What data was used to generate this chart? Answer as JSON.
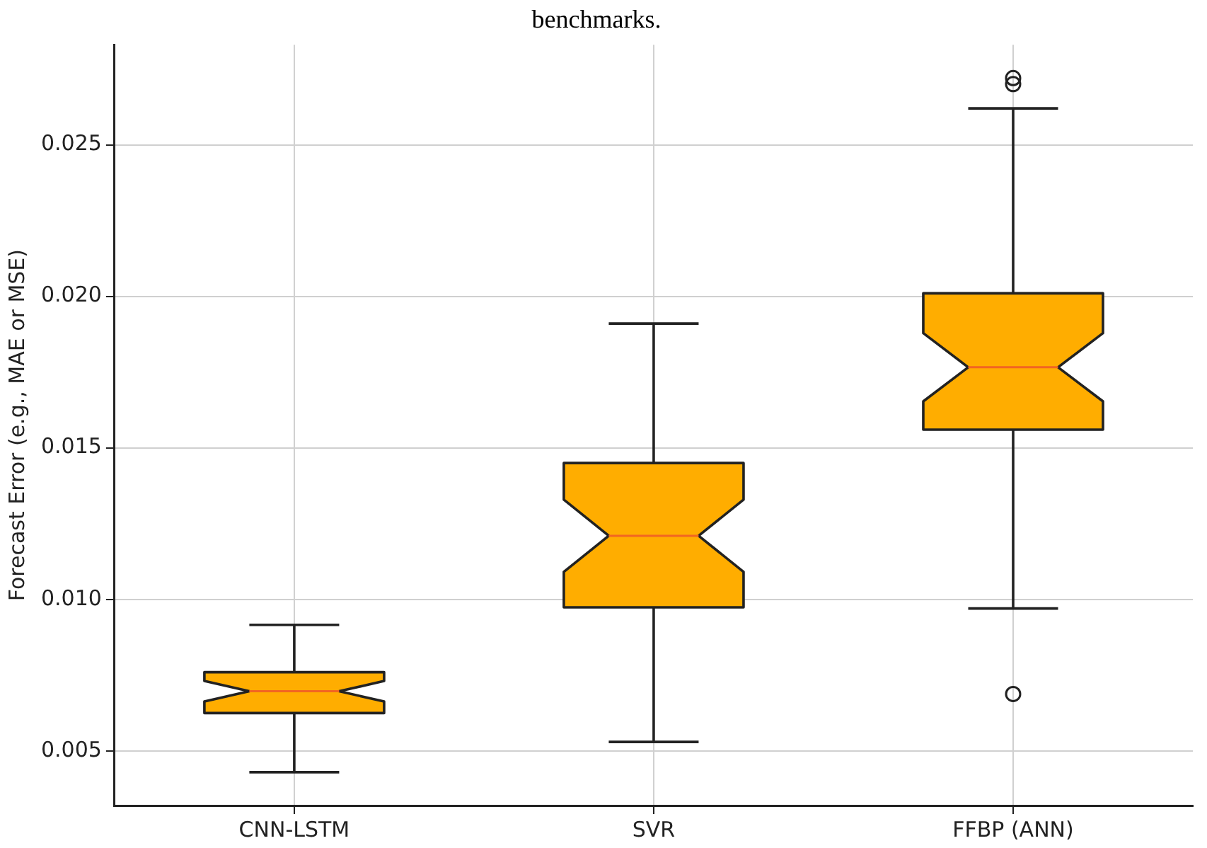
{
  "chart_data": {
    "type": "box",
    "title": "benchmarks.",
    "ylabel": "Forecast Error (e.g., MAE or MSE)",
    "categories": [
      "CNN-LSTM",
      "SVR",
      "FFBP (ANN)"
    ],
    "color": "#ffad00",
    "boxes": [
      {
        "low": 0.0043,
        "q1": 0.00625,
        "median": 0.00697,
        "q3": 0.0076,
        "high": 0.00916
      },
      {
        "low": 0.0053,
        "q1": 0.00974,
        "median": 0.0121,
        "q3": 0.0145,
        "high": 0.0191
      },
      {
        "low": 0.0097,
        "q1": 0.0156,
        "median": 0.01766,
        "q3": 0.0201,
        "high": 0.0262,
        "outliers": [
          0.0272,
          0.027,
          0.00688
        ]
      }
    ],
    "ylim": [
      0.0032,
      0.0283
    ],
    "yticks": [
      {
        "value": 0.005,
        "label": "0.005"
      },
      {
        "value": 0.01,
        "label": "0.010"
      },
      {
        "value": 0.015,
        "label": "0.015"
      },
      {
        "value": 0.02,
        "label": "0.020"
      },
      {
        "value": 0.025,
        "label": "0.025"
      }
    ],
    "grid": true
  }
}
